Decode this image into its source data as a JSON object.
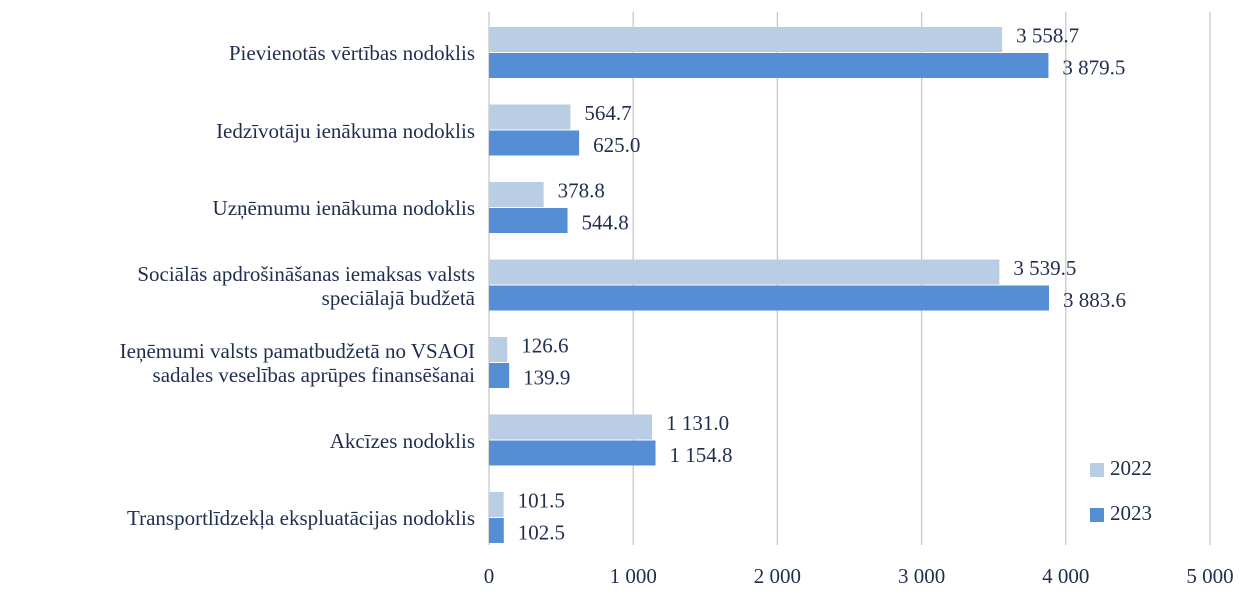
{
  "chart_data": {
    "type": "bar",
    "orientation": "horizontal",
    "categories": [
      "Pievienotās vērtības nodoklis",
      "Iedzīvotāju ienākuma nodoklis",
      "Uzņēmumu ienākuma nodoklis",
      "Sociālās apdrošināšanas iemaksas valsts\nspeciālajā budžetā",
      "Ieņēmumi valsts pamatbudžetā no VSAOI\nsadales veselības aprūpes finansēšanai",
      "Akcīzes nodoklis",
      "Transportlīdzekļa ekspluatācijas nodoklis"
    ],
    "series": [
      {
        "name": "2022",
        "color": "#b9cde5",
        "values": [
          3558.7,
          564.7,
          378.8,
          3539.5,
          126.6,
          1131.0,
          101.5
        ],
        "value_labels": [
          "3 558.7",
          "564.7",
          "378.8",
          "3 539.5",
          "126.6",
          "1 131.0",
          "101.5"
        ]
      },
      {
        "name": "2023",
        "color": "#558ed5",
        "values": [
          3879.5,
          625.0,
          544.8,
          3883.6,
          139.9,
          1154.8,
          102.5
        ],
        "value_labels": [
          "3 879.5",
          "625.0",
          "544.8",
          "3 883.6",
          "139.9",
          "1 154.8",
          "102.5"
        ]
      }
    ],
    "xlim": [
      0,
      5000
    ],
    "xticks": [
      0,
      {
        "value": 1000,
        "label": "1 000"
      },
      {
        "value": 2000,
        "label": "2 000"
      },
      {
        "value": 3000,
        "label": "3 000"
      },
      {
        "value": 4000,
        "label": "4 000"
      },
      {
        "value": 5000,
        "label": "5 000"
      }
    ],
    "grid": true,
    "legend": "lower right"
  }
}
